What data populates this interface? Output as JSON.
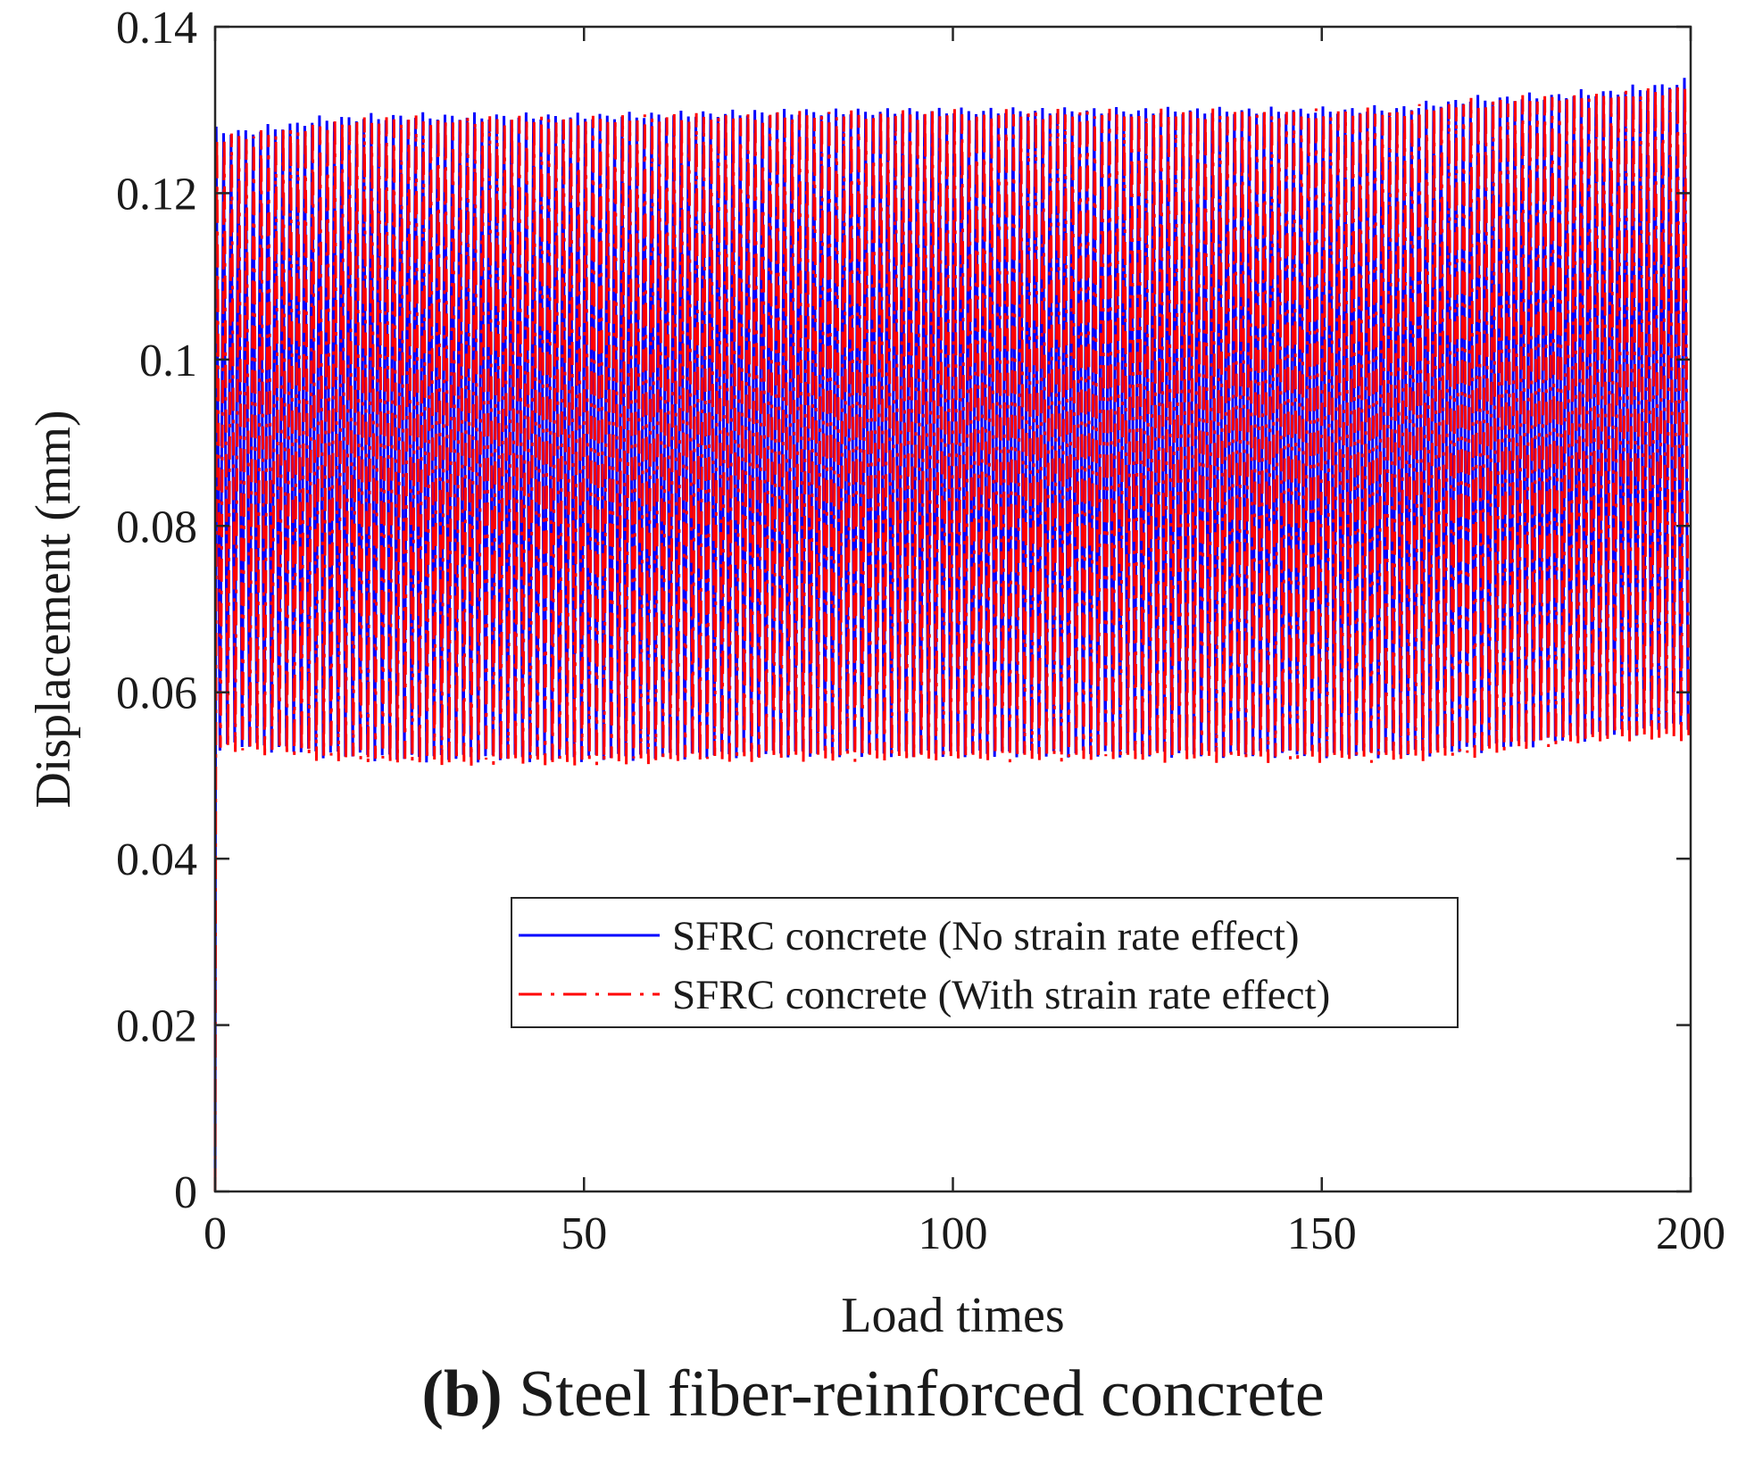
{
  "chart_data": {
    "type": "line",
    "xlabel": "Load times",
    "ylabel": "Displacement (mm)",
    "xlim": [
      0,
      200
    ],
    "ylim": [
      0,
      0.14
    ],
    "x_ticks": [
      "0",
      "50",
      "100",
      "150",
      "200"
    ],
    "y_ticks": [
      "0",
      "0.02",
      "0.04",
      "0.06",
      "0.08",
      "0.1",
      "0.12",
      "0.14"
    ],
    "grid": false,
    "legend_position": "lower-center",
    "cycles": 200,
    "series": [
      {
        "name": "SFRC concrete (No strain rate effect)",
        "color": "#0000ff",
        "style": "solid",
        "upper_envelope": {
          "x": [
            0,
            5,
            15,
            25,
            50,
            75,
            100,
            125,
            150,
            160,
            170,
            180,
            190,
            200
          ],
          "y": [
            0.128,
            0.128,
            0.1295,
            0.1298,
            0.1298,
            0.1303,
            0.1305,
            0.1305,
            0.1305,
            0.1307,
            0.1318,
            0.1322,
            0.1328,
            0.134
          ]
        },
        "lower_envelope": {
          "x": [
            0,
            5,
            15,
            25,
            50,
            75,
            100,
            125,
            150,
            160,
            170,
            180,
            190,
            200
          ],
          "y": [
            0.053,
            0.053,
            0.052,
            0.0515,
            0.0515,
            0.052,
            0.052,
            0.052,
            0.052,
            0.052,
            0.0525,
            0.0535,
            0.0545,
            0.0555
          ]
        }
      },
      {
        "name": "SFRC concrete (With strain rate effect)",
        "color": "#ff0000",
        "style": "dash-dot",
        "upper_envelope": {
          "x": [
            0,
            5,
            15,
            25,
            50,
            75,
            100,
            125,
            150,
            160,
            170,
            180,
            190,
            200
          ],
          "y": [
            0.1275,
            0.1275,
            0.129,
            0.1295,
            0.1295,
            0.13,
            0.1302,
            0.1302,
            0.1302,
            0.1304,
            0.1315,
            0.132,
            0.1325,
            0.1335
          ]
        },
        "lower_envelope": {
          "x": [
            0,
            5,
            15,
            25,
            50,
            75,
            100,
            125,
            150,
            160,
            170,
            180,
            190,
            200
          ],
          "y": [
            0.0525,
            0.0525,
            0.0515,
            0.051,
            0.051,
            0.0515,
            0.0515,
            0.0515,
            0.0515,
            0.0515,
            0.052,
            0.053,
            0.054,
            0.054
          ]
        }
      }
    ]
  },
  "caption": {
    "label": "(b)",
    "text": "Steel fiber-reinforced concrete"
  }
}
